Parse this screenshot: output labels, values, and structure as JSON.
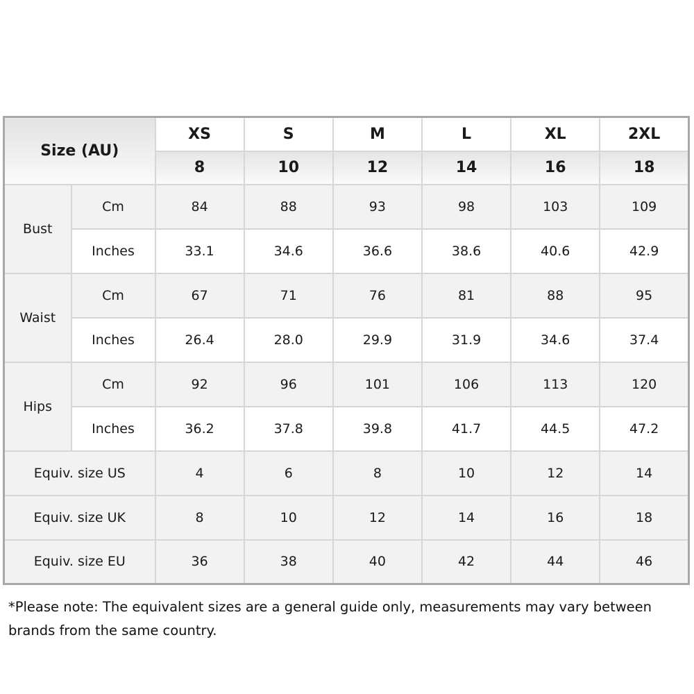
{
  "header": {
    "corner_label": "Size (AU)",
    "sizes": [
      "XS",
      "S",
      "M",
      "L",
      "XL",
      "2XL"
    ],
    "au_numbers": [
      "8",
      "10",
      "12",
      "14",
      "16",
      "18"
    ]
  },
  "measurements": [
    {
      "label": "Bust",
      "rows": [
        {
          "unit": "Cm",
          "values": [
            "84",
            "88",
            "93",
            "98",
            "103",
            "109"
          ]
        },
        {
          "unit": "Inches",
          "values": [
            "33.1",
            "34.6",
            "36.6",
            "38.6",
            "40.6",
            "42.9"
          ]
        }
      ]
    },
    {
      "label": "Waist",
      "rows": [
        {
          "unit": "Cm",
          "values": [
            "67",
            "71",
            "76",
            "81",
            "88",
            "95"
          ]
        },
        {
          "unit": "Inches",
          "values": [
            "26.4",
            "28.0",
            "29.9",
            "31.9",
            "34.6",
            "37.4"
          ]
        }
      ]
    },
    {
      "label": "Hips",
      "rows": [
        {
          "unit": "Cm",
          "values": [
            "92",
            "96",
            "101",
            "106",
            "113",
            "120"
          ]
        },
        {
          "unit": "Inches",
          "values": [
            "36.2",
            "37.8",
            "39.8",
            "41.7",
            "44.5",
            "47.2"
          ]
        }
      ]
    }
  ],
  "equivalents": [
    {
      "label": "Equiv. size US",
      "values": [
        "4",
        "6",
        "8",
        "10",
        "12",
        "14"
      ]
    },
    {
      "label": "Equiv. size UK",
      "values": [
        "8",
        "10",
        "12",
        "14",
        "16",
        "18"
      ]
    },
    {
      "label": "Equiv. size EU",
      "values": [
        "36",
        "38",
        "40",
        "42",
        "44",
        "46"
      ]
    }
  ],
  "note": "*Please note: The equivalent sizes are a general guide only, measurements may vary between brands from the same country."
}
